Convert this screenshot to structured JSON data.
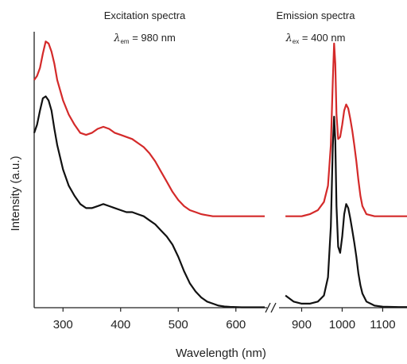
{
  "chart_data": {
    "type": "line",
    "xlabel": "Wavelength (nm)",
    "ylabel": "Intensity (a.u.)",
    "x_axis_break": [
      650,
      850
    ],
    "panels": [
      {
        "title": "Excitation spectra",
        "condition_symbol": "λ",
        "condition_subscript": "em",
        "condition_value": " = 980 nm",
        "xlim": [
          250,
          650
        ],
        "xticks": [
          300,
          400,
          500,
          600
        ],
        "xticklabels": [
          "300",
          "400",
          "500",
          "600"
        ]
      },
      {
        "title": "Emission spectra",
        "condition_symbol": "λ",
        "condition_subscript": "ex",
        "condition_value": " = 400 nm",
        "xlim": [
          850,
          1160
        ],
        "xticks": [
          900,
          1000,
          1100
        ],
        "xticklabels": [
          "900",
          "1000",
          "1100"
        ]
      }
    ],
    "ylim": [
      0,
      1.35
    ],
    "series": [
      {
        "color": "#d42a2a",
        "panel": 0,
        "x": [
          250,
          255,
          260,
          265,
          270,
          275,
          280,
          285,
          290,
          300,
          310,
          320,
          330,
          340,
          350,
          360,
          370,
          380,
          390,
          400,
          410,
          420,
          430,
          440,
          450,
          460,
          470,
          480,
          490,
          500,
          510,
          520,
          530,
          540,
          550,
          560,
          570,
          580,
          590,
          600,
          610,
          620,
          630,
          640,
          650
        ],
        "y": [
          1.12,
          1.14,
          1.18,
          1.25,
          1.31,
          1.3,
          1.26,
          1.2,
          1.12,
          1.02,
          0.95,
          0.9,
          0.86,
          0.85,
          0.86,
          0.88,
          0.89,
          0.88,
          0.86,
          0.85,
          0.84,
          0.83,
          0.81,
          0.79,
          0.76,
          0.72,
          0.67,
          0.62,
          0.57,
          0.53,
          0.5,
          0.48,
          0.47,
          0.46,
          0.455,
          0.45,
          0.45,
          0.45,
          0.45,
          0.45,
          0.45,
          0.45,
          0.45,
          0.45,
          0.45
        ]
      },
      {
        "color": "#d42a2a",
        "panel": 1,
        "x": [
          860,
          880,
          900,
          920,
          940,
          955,
          965,
          972,
          977,
          980,
          983,
          986,
          990,
          995,
          1000,
          1005,
          1010,
          1015,
          1020,
          1025,
          1030,
          1035,
          1040,
          1045,
          1050,
          1060,
          1080,
          1100,
          1120,
          1140,
          1160
        ],
        "y": [
          0.45,
          0.45,
          0.45,
          0.46,
          0.48,
          0.52,
          0.6,
          0.8,
          1.12,
          1.3,
          1.2,
          0.95,
          0.83,
          0.84,
          0.9,
          0.97,
          1.0,
          0.98,
          0.93,
          0.87,
          0.8,
          0.72,
          0.63,
          0.55,
          0.5,
          0.46,
          0.45,
          0.45,
          0.45,
          0.45,
          0.45
        ]
      },
      {
        "color": "#111111",
        "panel": 0,
        "x": [
          250,
          255,
          260,
          265,
          270,
          275,
          280,
          285,
          290,
          300,
          310,
          320,
          330,
          340,
          350,
          360,
          370,
          380,
          390,
          400,
          410,
          420,
          430,
          440,
          450,
          460,
          470,
          480,
          490,
          500,
          510,
          520,
          530,
          540,
          550,
          560,
          570,
          580,
          590,
          600,
          610,
          620,
          630,
          640,
          650
        ],
        "y": [
          0.86,
          0.9,
          0.97,
          1.03,
          1.04,
          1.02,
          0.97,
          0.88,
          0.8,
          0.68,
          0.6,
          0.55,
          0.51,
          0.49,
          0.49,
          0.5,
          0.51,
          0.5,
          0.49,
          0.48,
          0.47,
          0.47,
          0.46,
          0.45,
          0.43,
          0.41,
          0.38,
          0.35,
          0.31,
          0.25,
          0.18,
          0.12,
          0.08,
          0.05,
          0.03,
          0.02,
          0.01,
          0.006,
          0.004,
          0.003,
          0.002,
          0.002,
          0.002,
          0.002,
          0.002
        ]
      },
      {
        "color": "#111111",
        "panel": 1,
        "x": [
          860,
          880,
          900,
          920,
          940,
          955,
          965,
          972,
          977,
          980,
          983,
          986,
          990,
          995,
          1000,
          1005,
          1010,
          1015,
          1020,
          1025,
          1030,
          1035,
          1040,
          1045,
          1050,
          1060,
          1080,
          1100,
          1120,
          1140,
          1160
        ],
        "y": [
          0.06,
          0.03,
          0.02,
          0.02,
          0.03,
          0.06,
          0.15,
          0.4,
          0.8,
          0.94,
          0.82,
          0.5,
          0.3,
          0.27,
          0.35,
          0.46,
          0.51,
          0.49,
          0.44,
          0.38,
          0.32,
          0.25,
          0.17,
          0.11,
          0.07,
          0.03,
          0.01,
          0.005,
          0.004,
          0.003,
          0.003
        ]
      }
    ]
  }
}
